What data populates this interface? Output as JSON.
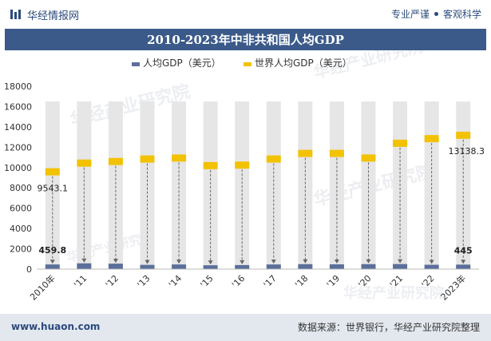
{
  "header": {
    "brand": "华经情报网",
    "tagline_left": "专业严谨",
    "tagline_right": "客观科学",
    "title": "2010-2023年中非共和国人均GDP"
  },
  "footer": {
    "site": "www.huaon.com",
    "source": "数据来源：世界银行，华经产业研究院整理"
  },
  "watermarks": [
    "华经产业研究院",
    "www.huaon.com"
  ],
  "colors": {
    "primary": "#3b5a8a",
    "series_per_capita": "#5b6f9a",
    "series_world": "#f2c200",
    "background_bar": "#e6e6e6"
  },
  "chart_data": {
    "type": "bar",
    "title": "2010-2023年中非共和国人均GDP",
    "categories": [
      "2010年",
      "'11",
      "'12",
      "'13",
      "'14",
      "'15",
      "'16",
      "'17",
      "'18",
      "'19",
      "'20",
      "'21",
      "'22",
      "2023年"
    ],
    "ylim": [
      0,
      18000
    ],
    "yticks": [
      0,
      2000,
      4000,
      6000,
      8000,
      10000,
      12000,
      14000,
      16000,
      18000
    ],
    "legend_position": "top-center",
    "series": [
      {
        "name": "人均GDP（美元）",
        "type": "bar",
        "values": [
          459.8,
          570,
          540,
          420,
          460,
          380,
          400,
          460,
          490,
          470,
          490,
          500,
          430,
          445
        ]
      },
      {
        "name": "世界人均GDP（美元）",
        "type": "marker",
        "values": [
          9543.1,
          10400,
          10550,
          10800,
          10900,
          10150,
          10200,
          10800,
          11350,
          11350,
          10900,
          12350,
          12800,
          13138.3
        ]
      }
    ],
    "data_labels": {
      "first_per_capita": "459.8",
      "last_per_capita": "445",
      "first_world": "9543.1",
      "last_world": "13138.3"
    }
  }
}
